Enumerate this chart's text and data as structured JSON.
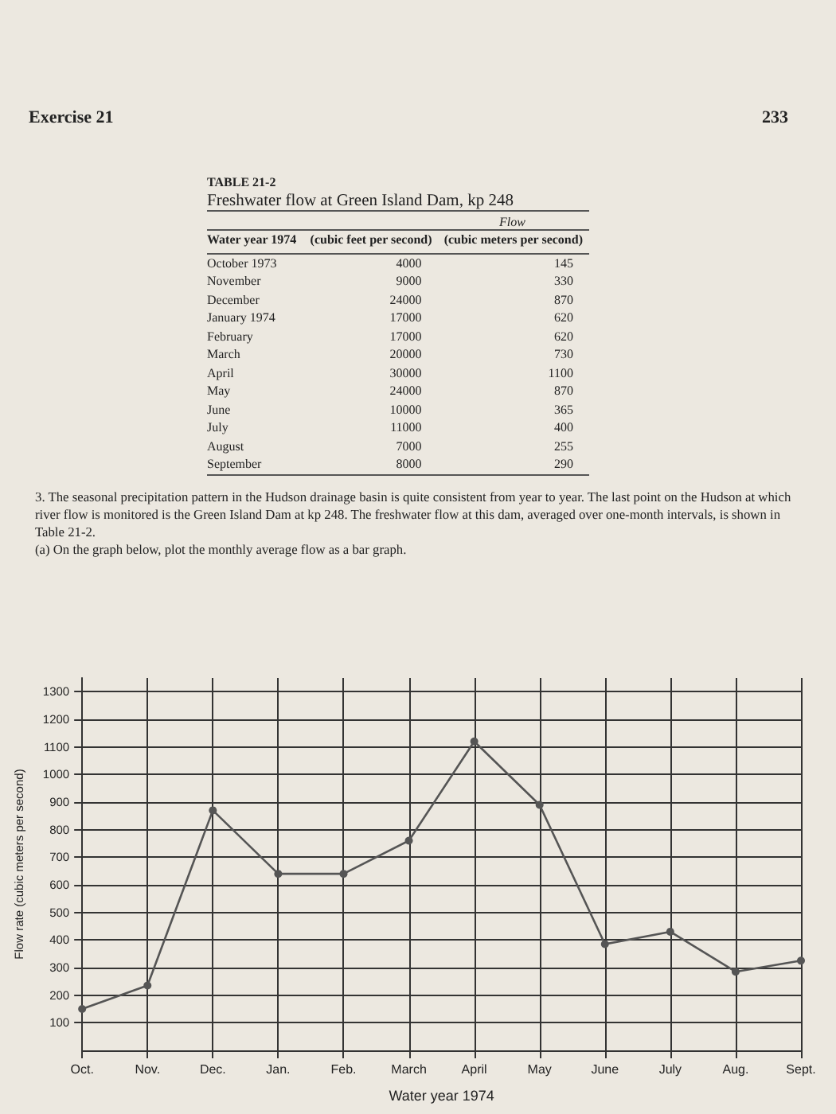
{
  "chart_data": {
    "type": "line",
    "xlabel": "Water year 1974",
    "ylabel": "Flow rate (cubic meters per second)",
    "categories": [
      "Oct.",
      "Nov.",
      "Dec.",
      "Jan.",
      "Feb.",
      "March",
      "April",
      "May",
      "June",
      "July",
      "Aug.",
      "Sept."
    ],
    "series": [
      {
        "color": "#555555",
        "values": [
          150,
          235,
          870,
          640,
          640,
          760,
          1120,
          890,
          385,
          430,
          285,
          325
        ]
      }
    ],
    "ylim": [
      0,
      1350
    ],
    "yticks": [
      100,
      200,
      300,
      400,
      500,
      600,
      700,
      800,
      900,
      1000,
      1100,
      1200,
      1300
    ],
    "grid": true,
    "marker": "circle",
    "line_style": "solid",
    "annotations": [
      "Exercise 21",
      "233",
      "TABLE 21-2",
      "Freshwater flow at Green Island Dam, kp 248",
      "Flow",
      "Water year 1974",
      "(cubic feet per second)",
      "(cubic meters per second)",
      "October 1973",
      "4000",
      "145",
      "November",
      "9000",
      "330",
      "December",
      "24000",
      "870",
      "January 1974",
      "17000",
      "620",
      "February",
      "17000",
      "620",
      "March",
      "20000",
      "730",
      "April",
      "30000",
      "1100",
      "May",
      "24000",
      "870",
      "June",
      "10000",
      "365",
      "July",
      "11000",
      "400",
      "August",
      "7000",
      "255",
      "September",
      "8000",
      "290",
      "3. The seasonal precipitation pattern in the Hudson drainage basin is quite consistent from year to year. The last point on the Hudson at which river flow is monitored is the Green Island Dam at kp 248. The freshwater flow at this dam, averaged over one-month intervals, is shown in Table 21-2.",
      "(a) On the graph below, plot the monthly average flow as a bar graph."
    ]
  }
}
